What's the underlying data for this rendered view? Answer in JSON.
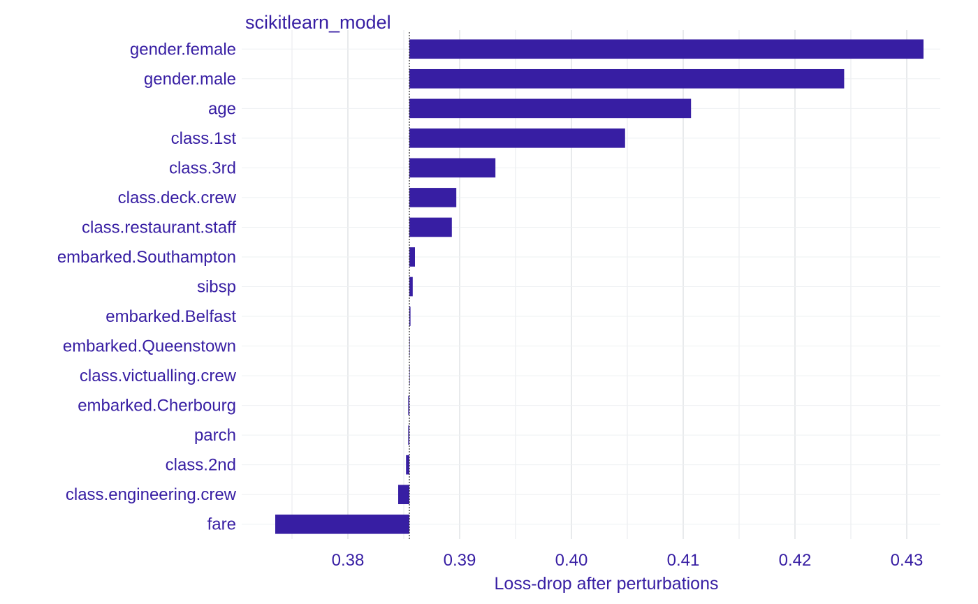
{
  "chart_data": {
    "type": "bar",
    "orientation": "horizontal",
    "title": "scikitlearn_model",
    "xlabel": "Loss-drop after perturbations",
    "ylabel": "",
    "baseline": 0.3855,
    "xlim": [
      0.3705,
      0.433
    ],
    "xticks": [
      0.38,
      0.39,
      0.4,
      0.41,
      0.42,
      0.43
    ],
    "xtick_labels": [
      "0.38",
      "0.39",
      "0.40",
      "0.41",
      "0.42",
      "0.43"
    ],
    "grid": true,
    "bar_color": "#371EA3",
    "categories": [
      "gender.female",
      "gender.male",
      "age",
      "class.1st",
      "class.3rd",
      "class.deck.crew",
      "class.restaurant.staff",
      "embarked.Southampton",
      "sibsp",
      "embarked.Belfast",
      "embarked.Queenstown",
      "class.victualling.crew",
      "embarked.Cherbourg",
      "parch",
      "class.2nd",
      "class.engineering.crew",
      "fare"
    ],
    "values": [
      0.4315,
      0.4244,
      0.4107,
      0.4048,
      0.3932,
      0.3897,
      0.3893,
      0.386,
      0.3858,
      0.3856,
      0.3855,
      0.3855,
      0.3854,
      0.3854,
      0.3852,
      0.3845,
      0.3735
    ]
  }
}
